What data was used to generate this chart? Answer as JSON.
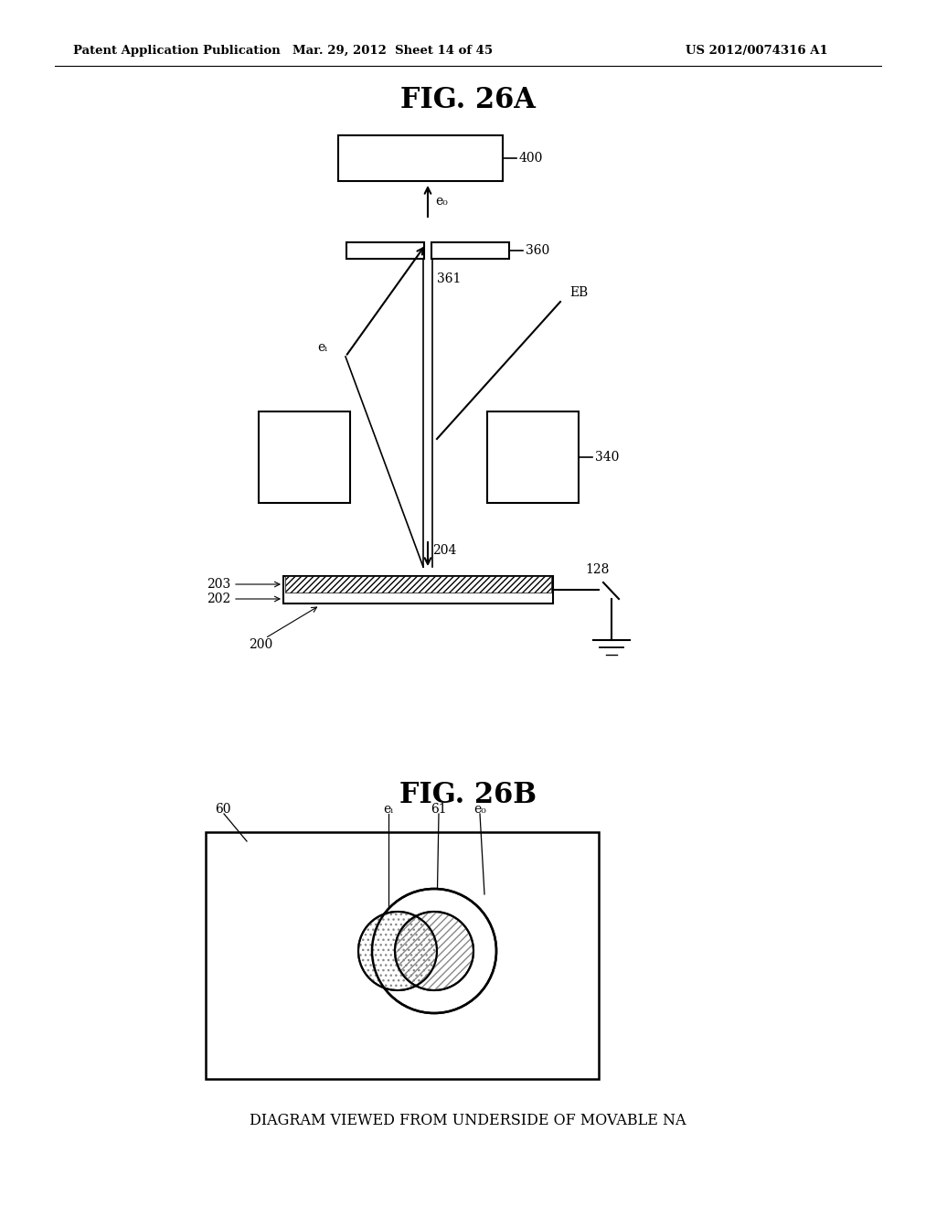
{
  "header_left": "Patent Application Publication",
  "header_mid": "Mar. 29, 2012  Sheet 14 of 45",
  "header_right": "US 2012/0074316 A1",
  "fig_26a_title": "FIG. 26A",
  "fig_26b_title": "FIG. 26B",
  "fig26b_caption": "DIAGRAM VIEWED FROM UNDERSIDE OF MOVABLE NA",
  "background": "#ffffff",
  "line_color": "#000000"
}
